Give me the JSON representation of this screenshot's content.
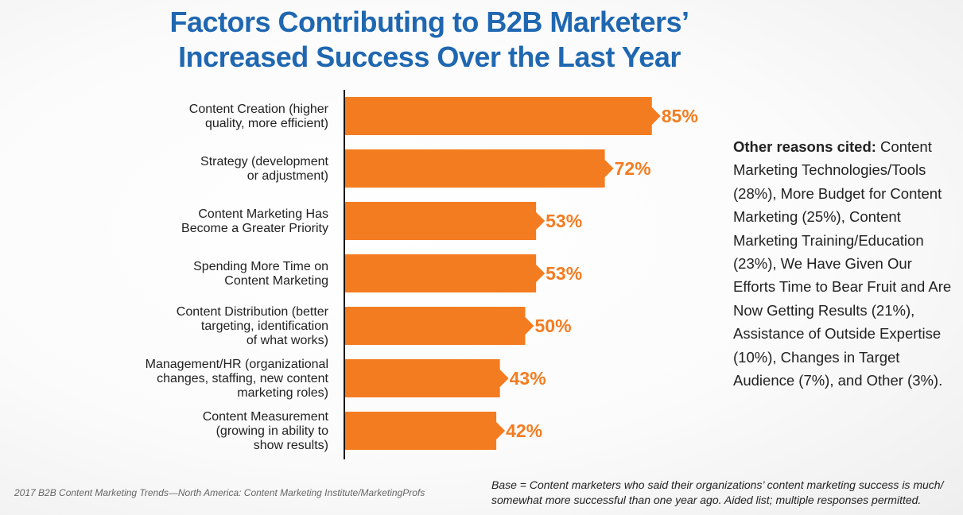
{
  "title": {
    "line1": "Factors Contributing to B2B Marketers’",
    "line2": "Increased Success Over the Last Year"
  },
  "colors": {
    "title": "#1f67b1",
    "bar": "#f47c20",
    "axis": "#111111",
    "text": "#222222"
  },
  "chart_data": {
    "type": "bar",
    "orientation": "horizontal",
    "title": "Factors Contributing to B2B Marketers’ Increased Success Over the Last Year",
    "categories": [
      [
        "Content Creation (higher",
        "quality, more efficient)"
      ],
      [
        "Strategy (development",
        "or adjustment)"
      ],
      [
        "Content Marketing Has",
        "Become a Greater Priority"
      ],
      [
        "Spending More Time on",
        "Content Marketing"
      ],
      [
        "Content Distribution (better",
        "targeting, identification",
        "of what works)"
      ],
      [
        "Management/HR (organizational",
        "changes, staffing, new content",
        "marketing roles)"
      ],
      [
        "Content Measurement",
        "(growing in ability to",
        "show results)"
      ]
    ],
    "values": [
      85,
      72,
      53,
      53,
      50,
      43,
      42
    ],
    "value_labels": [
      "85%",
      "72%",
      "53%",
      "53%",
      "50%",
      "43%",
      "42%"
    ],
    "unit": "%",
    "xlim": [
      0,
      100
    ],
    "grid": false
  },
  "other_reasons": {
    "heading": "Other reasons cited:",
    "text": " Content Marketing Technologies/Tools (28%), More Budget for Content Marketing (25%), Content Marketing Training/Education (23%), We Have Given Our Efforts Time to Bear Fruit and Are Now Getting Results (21%), Assistance of Outside Expertise (10%), Changes in Target Audience (7%), and Other (3%)."
  },
  "footer": {
    "source": "2017 B2B Content Marketing Trends—North America: Content Marketing Institute/MarketingProfs",
    "base": "Base = Content marketers who said their organizations’ content marketing success is much/ somewhat more successful than one year ago. Aided list; multiple responses permitted."
  }
}
